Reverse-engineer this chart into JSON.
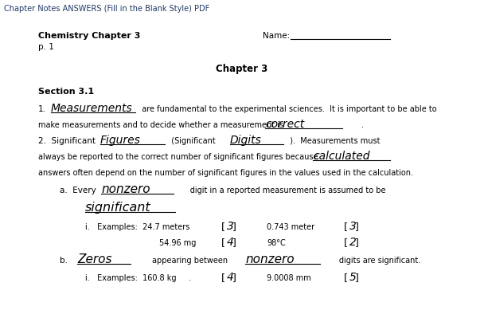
{
  "bg_color": "#ffffff",
  "top_label": "Chapter Notes ANSWERS (Fill in the Blank Style) PDF",
  "header_left_line1": "Chemistry Chapter 3",
  "header_left_line2": "p. 1",
  "header_right": "Name: ___________________",
  "chapter_title": "Chapter 3",
  "section_title": "Section 3.1",
  "top_label_color": "#1f3864",
  "header_color": "#1f3864"
}
